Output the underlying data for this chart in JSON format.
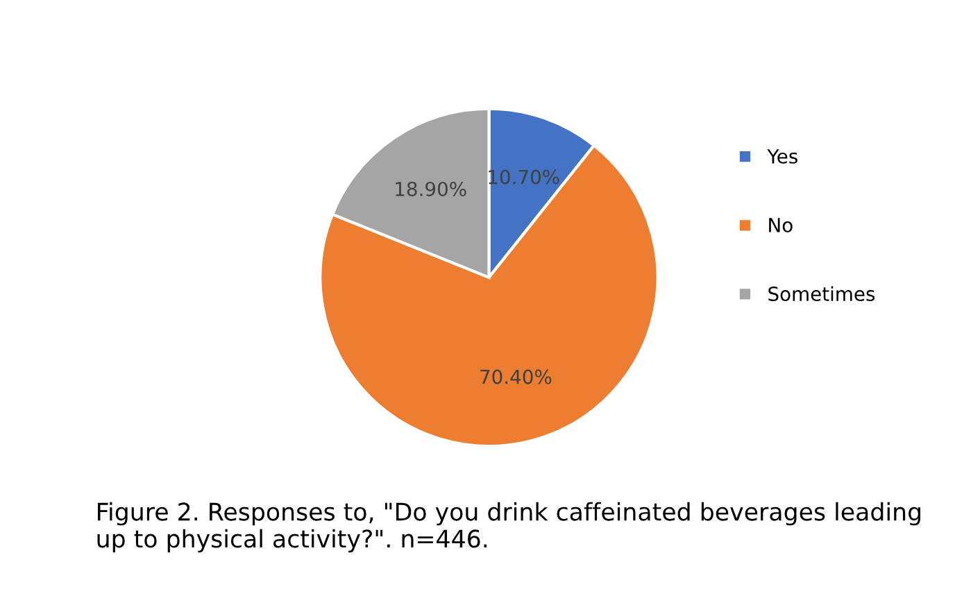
{
  "chart_data": {
    "type": "pie",
    "categories": [
      "Yes",
      "No",
      "Sometimes"
    ],
    "values": [
      10.7,
      70.4,
      18.9
    ],
    "colors": [
      "#4472c4",
      "#ed7d31",
      "#a5a5a5"
    ],
    "value_labels": [
      "10.70%",
      "70.40%",
      "18.90%"
    ],
    "legend": "right",
    "annotations": [
      "Figure 2. Responses to, \"Do you drink caffeinated beverages leading up to physical activity?\". n=446."
    ]
  }
}
